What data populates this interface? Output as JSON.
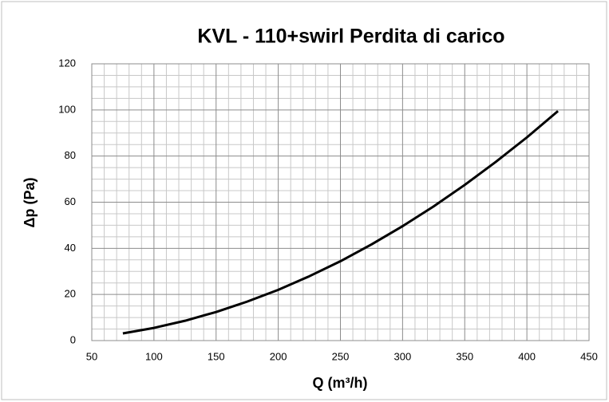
{
  "chart_data": {
    "type": "line",
    "title": "KVL - 110+swirl Perdita di carico",
    "xlabel": "Q (m³/h)",
    "ylabel": "Δp (Pa)",
    "x": [
      75,
      100,
      125,
      150,
      175,
      200,
      225,
      250,
      275,
      300,
      325,
      350,
      375,
      400,
      425
    ],
    "series": [
      {
        "name": "Δp",
        "color": "#000000",
        "values": [
          3.1,
          5.5,
          8.6,
          12.4,
          16.9,
          22.0,
          27.9,
          34.4,
          41.7,
          49.6,
          58.2,
          67.5,
          77.5,
          88.1,
          99.5
        ]
      }
    ],
    "xlim": [
      50,
      450
    ],
    "xticks": [
      50,
      100,
      150,
      200,
      250,
      300,
      350,
      400,
      450
    ],
    "ylim": [
      0,
      120
    ],
    "yticks": [
      0,
      20,
      40,
      60,
      80,
      100,
      120
    ],
    "grid": true
  }
}
